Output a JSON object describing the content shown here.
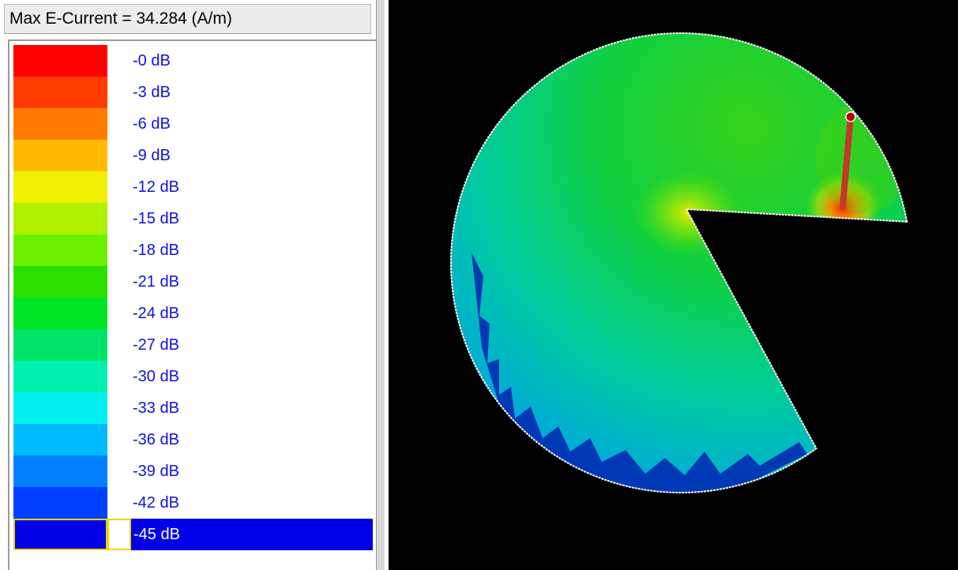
{
  "legend": {
    "title": "Max E-Current = 34.284 (A/m)",
    "items": [
      {
        "label": "-0 dB",
        "color": "#ff0000"
      },
      {
        "label": "-3 dB",
        "color": "#ff3c00"
      },
      {
        "label": "-6 dB",
        "color": "#ff7c00"
      },
      {
        "label": "-9 dB",
        "color": "#ffba00"
      },
      {
        "label": "-12 dB",
        "color": "#f0f000"
      },
      {
        "label": "-15 dB",
        "color": "#aef000"
      },
      {
        "label": "-18 dB",
        "color": "#6cf000"
      },
      {
        "label": "-21 dB",
        "color": "#2ce000"
      },
      {
        "label": "-24 dB",
        "color": "#00e624"
      },
      {
        "label": "-27 dB",
        "color": "#00e46a"
      },
      {
        "label": "-30 dB",
        "color": "#00f0b0"
      },
      {
        "label": "-33 dB",
        "color": "#00f0f0"
      },
      {
        "label": "-36 dB",
        "color": "#00bcff"
      },
      {
        "label": "-39 dB",
        "color": "#0080ff"
      },
      {
        "label": "-42 dB",
        "color": "#0040ff"
      },
      {
        "label": "-45 dB",
        "color": "#0000e6"
      }
    ],
    "selected_index": 15
  },
  "viewport": {
    "background": "#000000",
    "outline_color": "#ffffff",
    "probe_color": "#c0392b"
  }
}
